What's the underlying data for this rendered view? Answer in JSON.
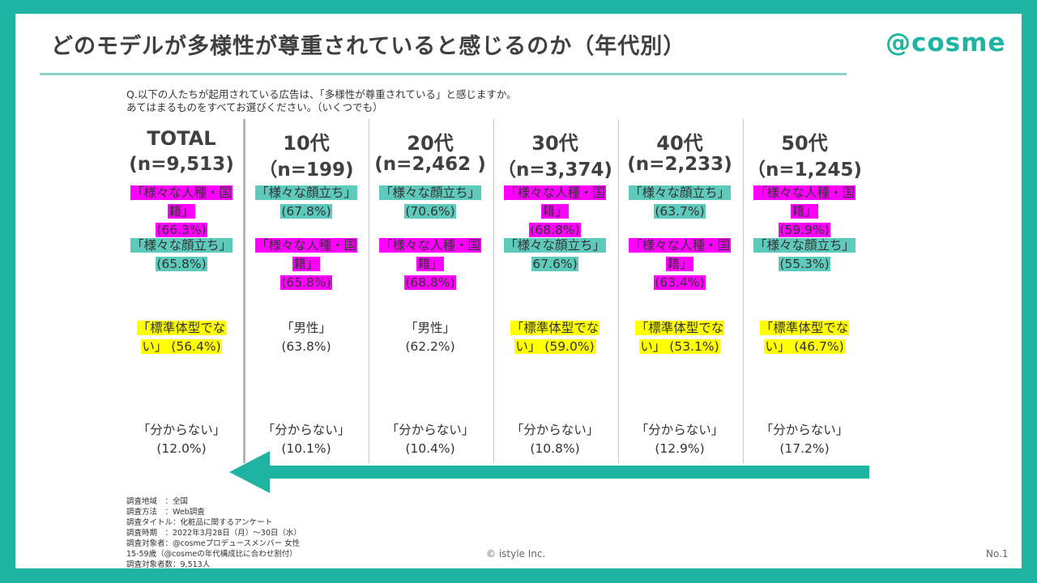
{
  "title": "どのモデルが多様性が尊重されていると感じるのか（年代別）",
  "logo": "@cosme",
  "question": {
    "line1": "Q.以下の人たちが起用されている広告は、「多様性が尊重されている」と感じますか。",
    "line2": "あてはまるものをすべてお選びください。（いくつでも）"
  },
  "colors": {
    "frame": "#1fb4a2",
    "pink": "#ff00ff",
    "teal": "#5dcabc",
    "yellow": "#ffff00",
    "arrow": "#1fb4a2"
  },
  "chart_data": {
    "type": "table",
    "title": "どのモデルが多様性が尊重されていると感じるのか（年代別）",
    "columns": [
      {
        "label": "TOTAL",
        "n": "(n=9,513)",
        "items": [
          {
            "lines": [
              "「様々な人種・国",
              "籍」",
              "(66.3%)"
            ],
            "highlight": "pink"
          },
          {
            "lines": [
              "「様々な顔立ち」",
              "(65.8%)"
            ],
            "highlight": "teal"
          },
          {
            "lines": [
              "「標準体型でな",
              "い」 (56.4%)"
            ],
            "highlight": "yellow"
          },
          {
            "lines": [
              "「分からない」",
              "(12.0%)"
            ],
            "highlight": "none"
          }
        ]
      },
      {
        "label": "10代",
        "n": "（n=199)",
        "items": [
          {
            "lines": [
              "「様々な顔立ち」",
              "(67.8%)"
            ],
            "highlight": "teal"
          },
          {
            "lines": [
              "「様々な人種・国",
              "籍」",
              "(65.8%)"
            ],
            "highlight": "pink"
          },
          {
            "lines": [
              "「男性」",
              "(63.8%)"
            ],
            "highlight": "none"
          },
          {
            "lines": [
              "「分からない」",
              "(10.1%)"
            ],
            "highlight": "none"
          }
        ]
      },
      {
        "label": "20代",
        "n": "(n=2,462 )",
        "items": [
          {
            "lines": [
              "「様々な顔立ち」",
              "(70.6%)"
            ],
            "highlight": "teal"
          },
          {
            "lines": [
              "「様々な人種・国",
              "籍」",
              "(68.8%)"
            ],
            "highlight": "pink"
          },
          {
            "lines": [
              "「男性」",
              "(62.2%)"
            ],
            "highlight": "none"
          },
          {
            "lines": [
              "「分からない」",
              "(10.4%)"
            ],
            "highlight": "none"
          }
        ]
      },
      {
        "label": "30代",
        "n": "（n=3,374)",
        "items": [
          {
            "lines": [
              "「様々な人種・国",
              "籍」",
              "(68.8%)"
            ],
            "highlight": "pink"
          },
          {
            "lines": [
              "「様々な顔立ち」",
              "67.6%)"
            ],
            "highlight": "teal"
          },
          {
            "lines": [
              "「標準体型でな",
              "い」 (59.0%)"
            ],
            "highlight": "yellow"
          },
          {
            "lines": [
              "「分からない」",
              "(10.8%)"
            ],
            "highlight": "none"
          }
        ]
      },
      {
        "label": "40代",
        "n": "(n=2,233)",
        "items": [
          {
            "lines": [
              "「様々な顔立ち」",
              "(63.7%)"
            ],
            "highlight": "teal"
          },
          {
            "lines": [
              "「様々な人種・国",
              "籍」",
              "(63.4%)"
            ],
            "highlight": "pink"
          },
          {
            "lines": [
              "「標準体型でな",
              "い」 (53.1%)"
            ],
            "highlight": "yellow"
          },
          {
            "lines": [
              "「分からない」",
              "(12.9%)"
            ],
            "highlight": "none"
          }
        ]
      },
      {
        "label": "50代",
        "n": "（n=1,245)",
        "items": [
          {
            "lines": [
              "「様々な人種・国",
              "籍」",
              "(59.9%)"
            ],
            "highlight": "pink"
          },
          {
            "lines": [
              "「様々な顔立ち」",
              "(55.3%)"
            ],
            "highlight": "teal"
          },
          {
            "lines": [
              "「標準体型でな",
              "い」 (46.7%)"
            ],
            "highlight": "yellow"
          },
          {
            "lines": [
              "「分からない」",
              "(17.2%)"
            ],
            "highlight": "none"
          }
        ]
      }
    ]
  },
  "footnote": [
    "調査地域　：全国",
    "調査方法　：Web調査",
    "調査タイトル：化粧品に関するアンケート",
    "調査時期　：2022年3月28日（月）～30日（水）",
    "調査対象者：@cosmeプロデュースメンバー 女性",
    "15-59歳（@cosmeの年代構成比に合わせ割付）",
    "調査対象者数：9,513人"
  ],
  "copyright": "© istyle Inc.",
  "page_no": "No.1"
}
